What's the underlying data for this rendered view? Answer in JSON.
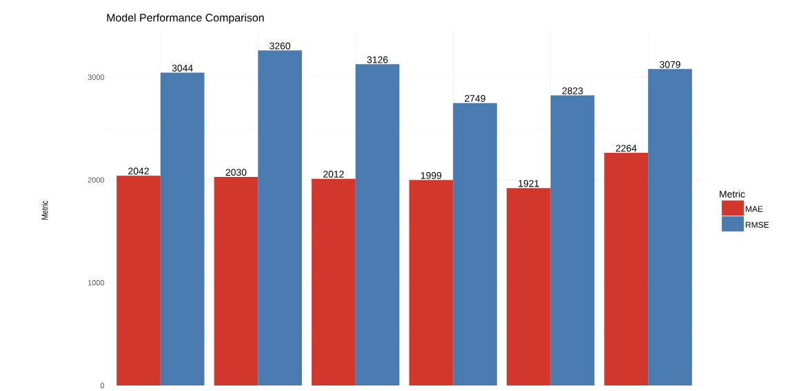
{
  "chart_data": {
    "type": "bar",
    "title": "Model Performance Comparison",
    "ylabel": "Metric",
    "legend_title": "Metric",
    "categories": [
      null,
      null,
      null,
      null,
      null,
      null
    ],
    "series": [
      {
        "name": "MAE",
        "color": "#d2372c",
        "values": [
          2042,
          2030,
          2012,
          1999,
          1921,
          2264
        ]
      },
      {
        "name": "RMSE",
        "color": "#4a7bb0",
        "values": [
          3044,
          3260,
          3126,
          2749,
          2823,
          3079
        ]
      }
    ],
    "ylim": [
      -40,
      3450
    ],
    "yticks": [
      0,
      1000,
      2000,
      3000
    ],
    "grid": true,
    "legend": "right",
    "data_labels": true
  }
}
